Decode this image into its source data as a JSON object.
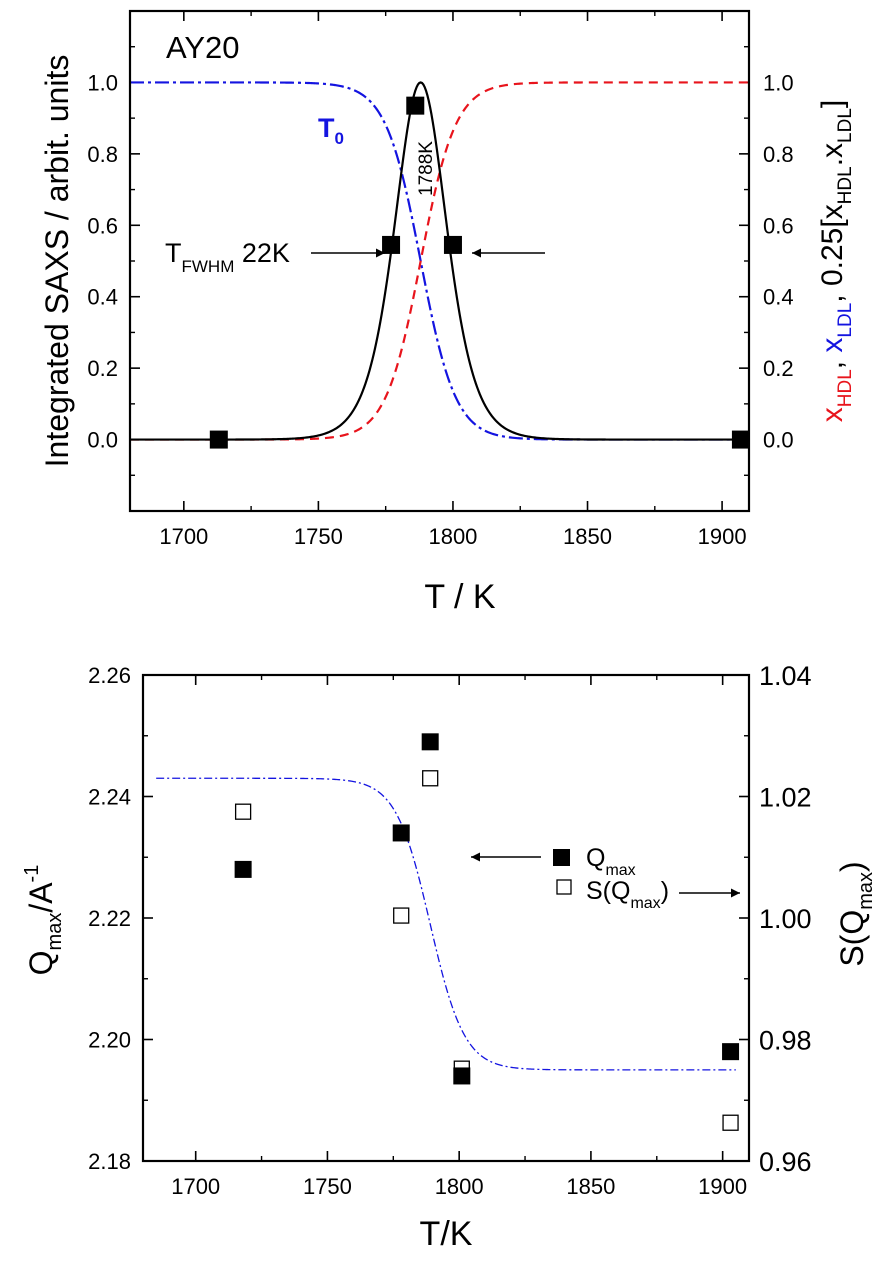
{
  "chart_data": [
    {
      "type": "line",
      "panel_label": "AY20",
      "xlabel": "T / K",
      "ylabel_left": "Integrated SAXS / arbit. units",
      "ylabel_right_parts": [
        {
          "text": "x",
          "color": "#e8141c"
        },
        {
          "text": "HDL",
          "color": "#e8141c",
          "sub": true
        },
        {
          "text": ", ",
          "color": "#000000"
        },
        {
          "text": "x",
          "color": "#1414e0"
        },
        {
          "text": "LDL",
          "color": "#1414e0",
          "sub": true
        },
        {
          "text": ", 0.25[x",
          "color": "#000000"
        },
        {
          "text": "HDL",
          "color": "#000000",
          "sub": true
        },
        {
          "text": ".x",
          "color": "#000000"
        },
        {
          "text": "LDL",
          "color": "#000000",
          "sub": true
        },
        {
          "text": "]",
          "color": "#000000"
        }
      ],
      "xlim": [
        1680,
        1910
      ],
      "ylim": [
        -0.2,
        1.2
      ],
      "xticks": [
        1700,
        1750,
        1800,
        1850,
        1900
      ],
      "yticks": [
        0.0,
        0.2,
        0.4,
        0.6,
        0.8,
        1.0
      ],
      "xtick_labels": [
        "1700",
        "1750",
        "1800",
        "1850",
        "1900"
      ],
      "ytick_labels": [
        "0.0",
        "0.2",
        "0.4",
        "0.6",
        "0.8",
        "1.0"
      ],
      "series": [
        {
          "name": "SAXS",
          "style": "markers",
          "color": "#000000",
          "x": [
            1713,
            1777,
            1786,
            1800,
            1907
          ],
          "y": [
            0.0,
            0.545,
            0.935,
            0.545,
            0.0
          ]
        },
        {
          "name": "T0",
          "style": "dash-dot",
          "color": "#1414e0",
          "curve": "sigmoid-falling",
          "center": 1788,
          "width": 6.5
        },
        {
          "name": "x_HDL",
          "style": "dashed",
          "color": "#e8141c",
          "curve": "sigmoid-rising",
          "center": 1788,
          "width": 6.5
        },
        {
          "name": "0.25[x_HDL.x_LDL]",
          "style": "solid",
          "color": "#000000",
          "curve": "peak",
          "center": 1788,
          "width": 6.5
        }
      ],
      "annotations": {
        "t0_label": "T",
        "t0_sub": "0",
        "peak_label": "1788K",
        "fwhm_label_main": "T",
        "fwhm_label_sub": "FWHM",
        "fwhm_label_value": " 22K"
      }
    },
    {
      "type": "scatter",
      "xlabel": "T/K",
      "ylabel_left_main": "Q",
      "ylabel_left_sub": "max",
      "ylabel_left_rest": "/A",
      "ylabel_left_sup": "-1",
      "ylabel_right_main": "S(Q",
      "ylabel_right_sub": "max",
      "ylabel_right_rest": ")",
      "xlim": [
        1680,
        1910
      ],
      "ylim_left": [
        2.18,
        2.26
      ],
      "ylim_right": [
        0.96,
        1.04
      ],
      "xticks": [
        1700,
        1750,
        1800,
        1850,
        1900
      ],
      "xtick_labels": [
        "1700",
        "1750",
        "1800",
        "1850",
        "1900"
      ],
      "yticks_left": [
        2.18,
        2.2,
        2.22,
        2.24,
        2.26
      ],
      "ytick_labels_left": [
        "2.18",
        "2.20",
        "2.22",
        "2.24",
        "2.26"
      ],
      "yticks_right": [
        0.96,
        0.98,
        1.0,
        1.02,
        1.04
      ],
      "ytick_labels_right": [
        "0.96",
        "0.98",
        "1.00",
        "1.02",
        "1.04"
      ],
      "series": [
        {
          "name": "Q_max",
          "style": "filled-square",
          "axis": "left",
          "color": "#000000",
          "x": [
            1718,
            1778,
            1789,
            1801,
            1903
          ],
          "y": [
            2.228,
            2.234,
            2.249,
            2.194,
            2.198
          ]
        },
        {
          "name": "S(Q_max)",
          "style": "open-square",
          "axis": "right",
          "color": "#000000",
          "x": [
            1718,
            1778,
            1789,
            1801,
            1903
          ],
          "y": [
            1.0175,
            1.0004,
            1.023,
            0.9752,
            0.9663
          ]
        },
        {
          "name": "fit",
          "style": "dash-dot",
          "axis": "left",
          "color": "#1414e0",
          "curve": "sigmoid-falling",
          "center": 1789,
          "width": 6.5,
          "high": 2.243,
          "low": 2.195
        }
      ],
      "legend": {
        "q_main": "Q",
        "q_sub": "max",
        "s_main": "S(Q",
        "s_sub": "max",
        "s_rest": ")"
      }
    }
  ]
}
